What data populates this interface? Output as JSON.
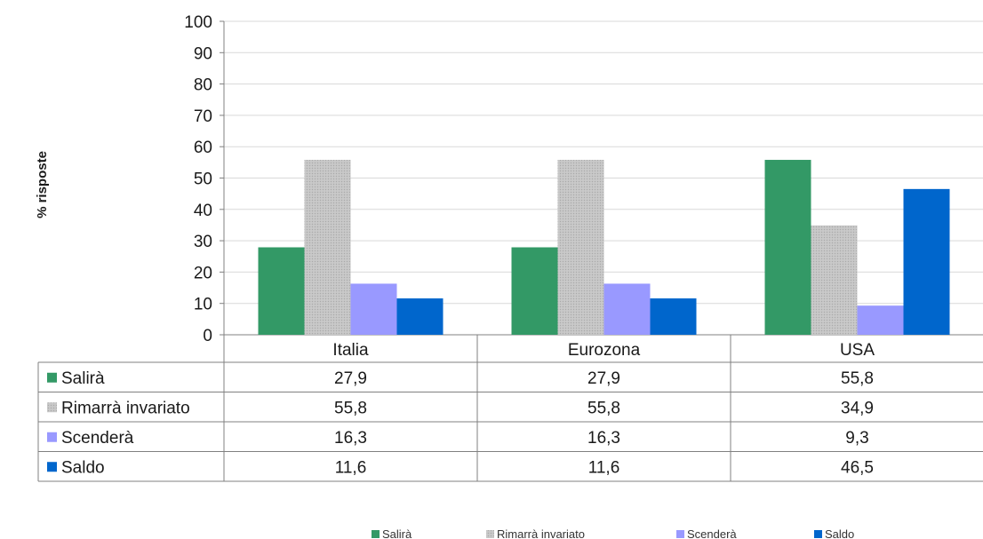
{
  "chart_data": {
    "type": "bar",
    "categories": [
      "Italia",
      "Eurozona",
      "USA"
    ],
    "series": [
      {
        "name": "Salirà",
        "values": [
          "27,9",
          "27,9",
          "55,8"
        ],
        "color": "#339966",
        "pattern": "solid"
      },
      {
        "name": "Rimarrà invariato",
        "values": [
          "55,8",
          "55,8",
          "34,9"
        ],
        "color": "#c0c0c0",
        "pattern": "dotted-texture"
      },
      {
        "name": "Scenderà",
        "values": [
          "16,3",
          "16,3",
          "9,3"
        ],
        "color": "#9999ff",
        "pattern": "solid"
      },
      {
        "name": "Saldo",
        "values": [
          "11,6",
          "11,6",
          "46,5"
        ],
        "color": "#0066cc",
        "pattern": "solid"
      }
    ],
    "ylabel": "% risposte",
    "xlabel": "",
    "ylim": [
      0,
      100
    ],
    "yticks": [
      "0",
      "10",
      "20",
      "30",
      "40",
      "50",
      "60",
      "70",
      "80",
      "90",
      "100"
    ],
    "grid": true,
    "data_table": true,
    "legend_placement": "bottom-center"
  }
}
